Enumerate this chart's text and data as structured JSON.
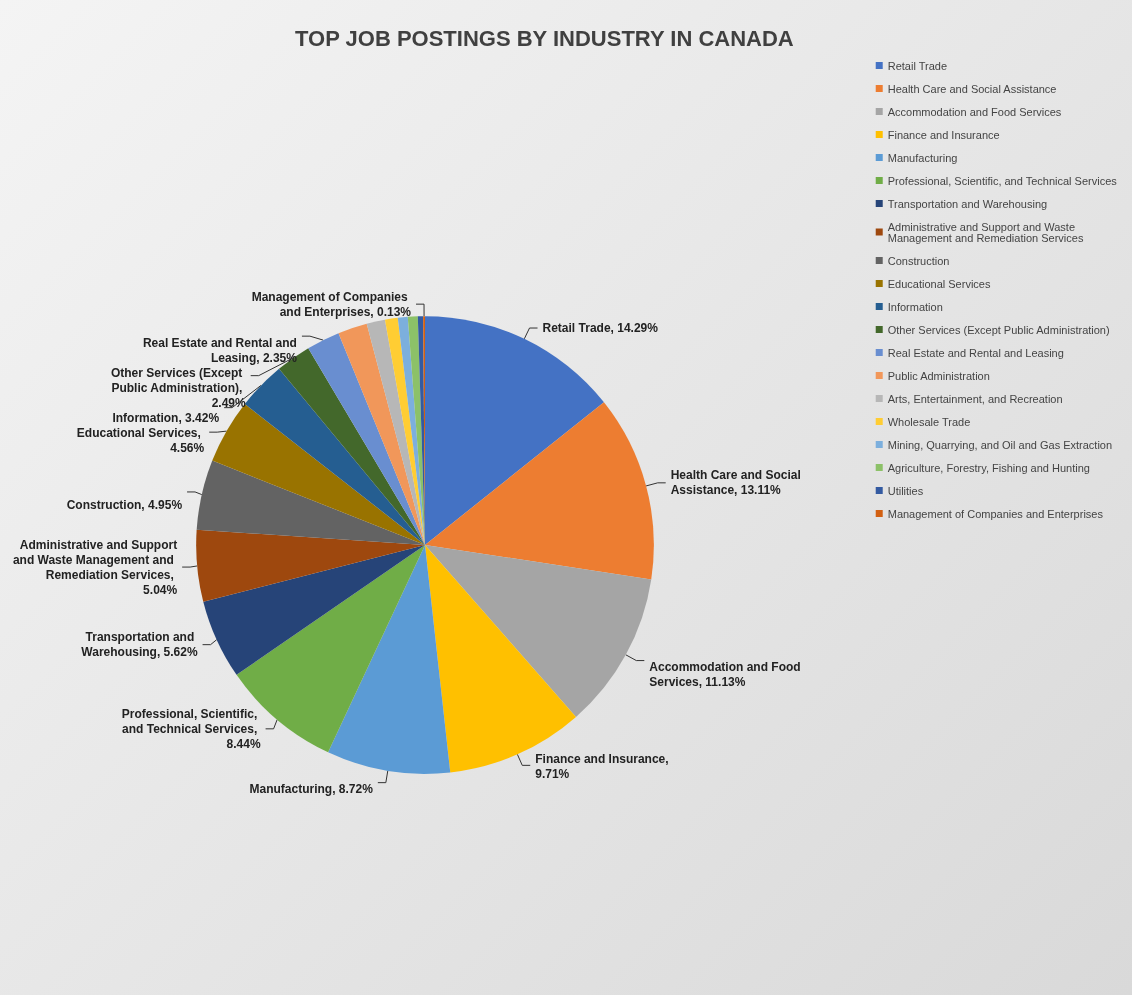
{
  "chart_data": {
    "type": "pie",
    "title": "TOP JOB POSTINGS BY INDUSTRY IN CANADA",
    "categories": [
      "Retail Trade",
      "Health Care and Social Assistance",
      "Accommodation and Food Services",
      "Finance and Insurance",
      "Manufacturing",
      "Professional, Scientific, and Technical Services",
      "Transportation and Warehousing",
      "Administrative and Support and Waste Management and Remediation Services",
      "Construction",
      "Educational Services",
      "Information",
      "Other Services (Except Public Administration)",
      "Real Estate and Rental and Leasing",
      "Public Administration",
      "Arts, Entertainment, and Recreation",
      "Wholesale Trade",
      "Mining, Quarrying, and Oil and Gas Extraction",
      "Agriculture, Forestry, Fishing and Hunting",
      "Utilities",
      "Management of Companies and Enterprises"
    ],
    "values": [
      14.29,
      13.11,
      11.13,
      9.71,
      8.72,
      8.44,
      5.62,
      5.04,
      4.95,
      4.56,
      3.42,
      2.49,
      2.35,
      2.07,
      1.3,
      0.9,
      0.7,
      0.7,
      0.37,
      0.13
    ],
    "value_labels": [
      "Retail Trade, 14.29%",
      "Health Care and Social Assistance, 13.11%",
      "Accommodation and Food Services, 11.13%",
      "Finance and Insurance, 9.71%",
      "Manufacturing, 8.72%",
      "Professional, Scientific, and Technical Services, 8.44%",
      "Transportation and Warehousing, 5.62%",
      "Administrative and Support and Waste Management and Remediation Services, 5.04%",
      "Construction, 4.95%",
      "Educational Services, 4.56%",
      "Information, 3.42%",
      "Other Services (Except Public Administration), 2.49%",
      "Real Estate and Rental and Leasing, 2.35%",
      null,
      null,
      null,
      null,
      null,
      null,
      "Management of Companies and Enterprises, 0.13%"
    ],
    "colors": [
      "#4472c4",
      "#ed7d31",
      "#a5a5a5",
      "#ffc000",
      "#5b9bd5",
      "#70ad47",
      "#264478",
      "#9e480e",
      "#636363",
      "#997300",
      "#255e91",
      "#43682b",
      "#698ed0",
      "#f1975a",
      "#b7b7b7",
      "#ffcd33",
      "#7cafdd",
      "#8cc168",
      "#335aa1",
      "#d26012"
    ],
    "legend": "top right"
  }
}
